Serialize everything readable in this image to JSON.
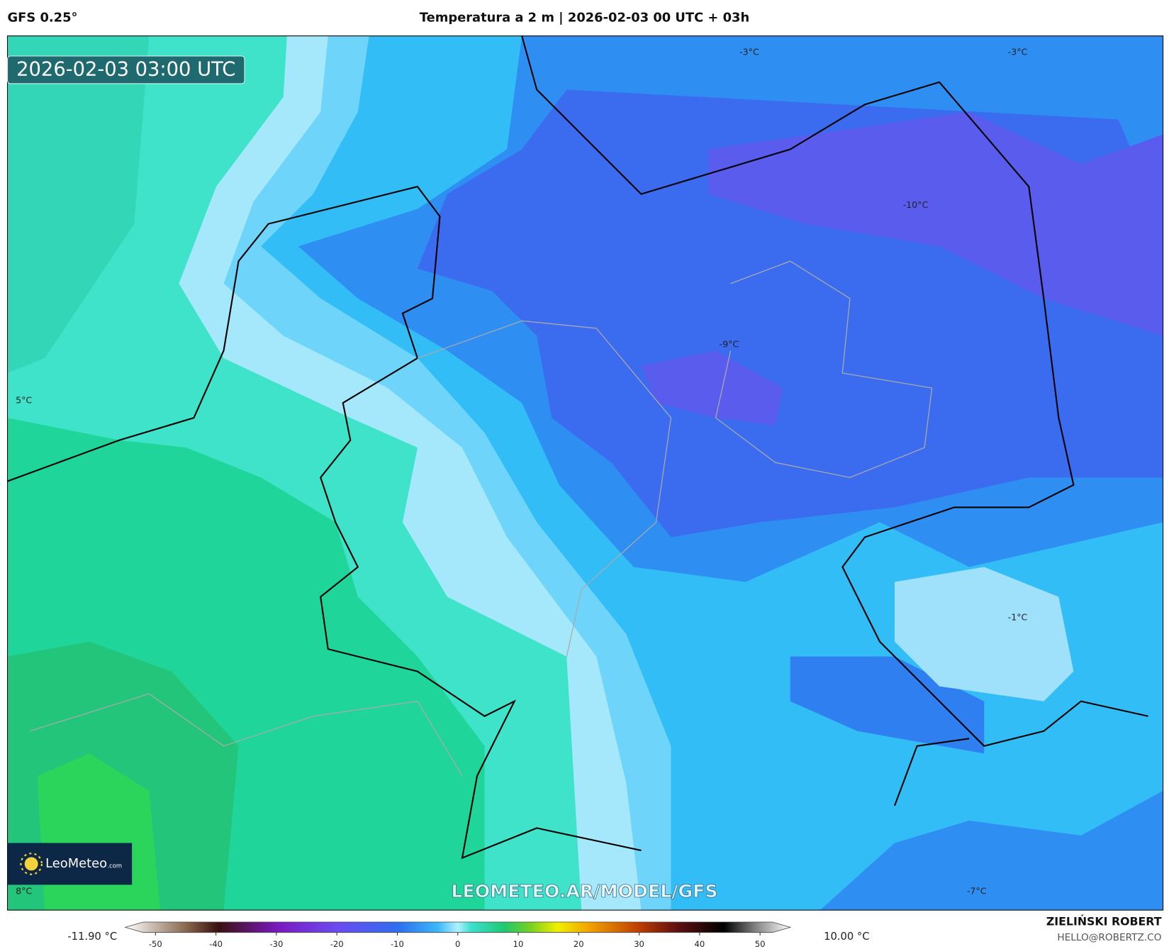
{
  "header": {
    "model": "GFS 0.25°",
    "title": "Temperatura a 2 m | 2026-02-03 00 UTC + 03h"
  },
  "map": {
    "timestamp": "2026-02-03 03:00 UTC",
    "contour_labels": [
      "-3°C",
      "-3°C",
      "-10°C",
      "-9°C",
      "5°C",
      "-1°C",
      "8°C",
      "-7°C"
    ],
    "logo": {
      "name": "LeoMeteo",
      "suffix": ".com"
    },
    "watermark": "LEOMETEO.AR/MODEL/GFS"
  },
  "colorbar": {
    "min_label": "-11.90 °C",
    "max_label": "10.00 °C",
    "lim": [
      -55,
      55
    ],
    "ticks": [
      -50,
      -40,
      -30,
      -20,
      -10,
      0,
      10,
      20,
      30,
      40,
      50
    ]
  },
  "footer": {
    "author": "ZIELIŃSKI ROBERT",
    "email": "HELLO@ROBERTZ.CO"
  }
}
